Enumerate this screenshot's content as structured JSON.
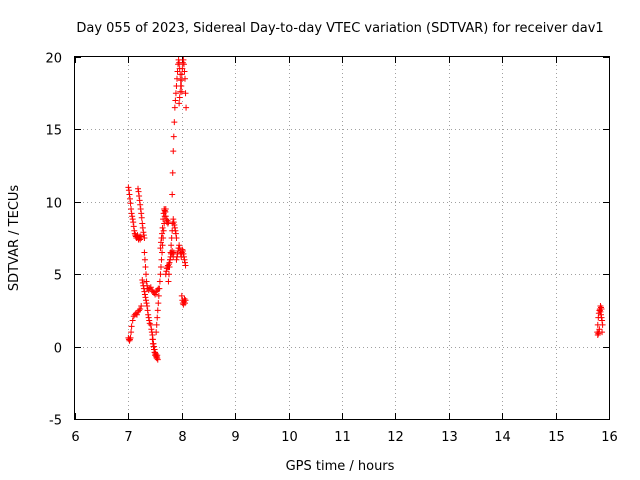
{
  "chart_data": {
    "type": "scatter",
    "title": "Day 055 of 2023, Sidereal Day-to-day VTEC variation (SDTVAR) for receiver dav1",
    "xlabel": "GPS time / hours",
    "ylabel": "SDTVAR / TECUs",
    "xlim": [
      6,
      16
    ],
    "ylim": [
      -5,
      20
    ],
    "xticks": [
      6,
      7,
      8,
      9,
      10,
      11,
      12,
      13,
      14,
      15,
      16
    ],
    "yticks": [
      -5,
      0,
      5,
      10,
      15,
      20
    ],
    "grid": true,
    "marker": "+",
    "color": "#ff0000",
    "series": [
      {
        "name": "SDTVAR",
        "x": [
          7.0,
          7.01,
          7.02,
          7.03,
          7.04,
          7.05,
          7.06,
          7.08,
          7.1,
          7.12,
          7.14,
          7.16,
          7.18,
          7.2,
          7.22,
          7.24,
          7.0,
          7.01,
          7.02,
          7.03,
          7.04,
          7.05,
          7.06,
          7.07,
          7.08,
          7.09,
          7.1,
          7.11,
          7.12,
          7.13,
          7.14,
          7.15,
          7.16,
          7.17,
          7.18,
          7.19,
          7.2,
          7.21,
          7.22,
          7.23,
          7.24,
          7.18,
          7.19,
          7.2,
          7.21,
          7.22,
          7.23,
          7.24,
          7.25,
          7.26,
          7.27,
          7.28,
          7.29,
          7.3,
          7.26,
          7.27,
          7.28,
          7.29,
          7.3,
          7.31,
          7.32,
          7.33,
          7.34,
          7.35,
          7.36,
          7.37,
          7.38,
          7.39,
          7.4,
          7.3,
          7.31,
          7.32,
          7.33,
          7.34,
          7.35,
          7.36,
          7.38,
          7.4,
          7.42,
          7.44,
          7.46,
          7.48,
          7.5,
          7.52,
          7.54,
          7.56,
          7.42,
          7.43,
          7.44,
          7.45,
          7.46,
          7.47,
          7.48,
          7.49,
          7.5,
          7.51,
          7.52,
          7.53,
          7.54,
          7.55,
          7.45,
          7.46,
          7.47,
          7.48,
          7.49,
          7.5,
          7.51,
          7.52,
          7.53,
          7.54,
          7.52,
          7.53,
          7.54,
          7.55,
          7.56,
          7.57,
          7.58,
          7.59,
          7.6,
          7.61,
          7.62,
          7.63,
          7.64,
          7.65,
          7.66,
          7.67,
          7.68,
          7.69,
          7.7,
          7.6,
          7.61,
          7.62,
          7.63,
          7.64,
          7.65,
          7.66,
          7.67,
          7.68,
          7.69,
          7.7,
          7.71,
          7.72,
          7.73,
          7.74,
          7.75,
          7.7,
          7.71,
          7.72,
          7.73,
          7.74,
          7.75,
          7.76,
          7.77,
          7.78,
          7.79,
          7.8,
          7.81,
          7.82,
          7.83,
          7.84,
          7.85,
          7.75,
          7.76,
          7.77,
          7.78,
          7.79,
          7.8,
          7.81,
          7.82,
          7.83,
          7.84,
          7.85,
          7.86,
          7.87,
          7.88,
          7.89,
          7.9,
          7.82,
          7.83,
          7.84,
          7.85,
          7.86,
          7.87,
          7.88,
          7.89,
          7.9,
          7.91,
          7.92,
          7.93,
          7.94,
          7.95,
          7.96,
          7.97,
          7.98,
          7.99,
          8.0,
          7.9,
          7.91,
          7.92,
          7.93,
          7.94,
          7.95,
          7.96,
          7.97,
          7.98,
          7.99,
          8.0,
          8.01,
          8.02,
          8.03,
          8.04,
          8.05,
          8.06,
          8.07,
          7.95,
          7.96,
          7.97,
          7.98,
          7.99,
          8.0,
          8.01,
          8.02,
          8.03,
          8.04,
          8.05,
          8.06,
          8.07,
          8.08,
          8.0,
          8.01,
          8.02,
          8.03,
          8.04,
          8.05,
          8.06,
          8.07,
          15.78,
          15.79,
          15.8,
          15.81,
          15.82,
          15.83,
          15.84,
          15.85,
          15.86,
          15.87,
          15.88,
          15.79,
          15.8,
          15.81,
          15.82,
          15.83,
          15.84,
          15.85,
          15.86,
          15.87
        ],
        "y": [
          0.6,
          0.5,
          0.4,
          0.5,
          0.6,
          1.0,
          1.4,
          1.8,
          2.1,
          2.2,
          2.3,
          2.2,
          2.4,
          2.5,
          2.6,
          2.8,
          11.0,
          10.8,
          10.5,
          10.2,
          9.9,
          9.5,
          9.2,
          9.0,
          8.8,
          8.6,
          8.3,
          8.0,
          7.8,
          7.7,
          7.6,
          7.5,
          7.6,
          7.7,
          7.5,
          7.4,
          7.6,
          7.5,
          7.4,
          7.6,
          7.5,
          10.9,
          10.7,
          10.4,
          10.1,
          9.8,
          9.5,
          9.2,
          8.9,
          8.5,
          8.2,
          7.9,
          7.7,
          7.5,
          4.6,
          4.4,
          4.2,
          4.0,
          3.8,
          3.6,
          3.4,
          3.2,
          3.0,
          2.8,
          2.5,
          2.2,
          2.0,
          1.8,
          1.6,
          6.5,
          6.0,
          5.5,
          5.0,
          4.5,
          4.2,
          4.0,
          3.9,
          4.0,
          4.1,
          3.9,
          3.8,
          3.7,
          3.6,
          3.8,
          3.9,
          4.0,
          1.5,
          1.2,
          1.0,
          0.8,
          0.5,
          0.2,
          0.0,
          -0.2,
          -0.4,
          -0.5,
          -0.6,
          -0.7,
          -0.8,
          -0.9,
          0.5,
          0.2,
          0.0,
          -0.2,
          -0.4,
          -0.6,
          -0.5,
          -0.7,
          -0.8,
          -0.6,
          1.0,
          1.5,
          2.0,
          2.5,
          3.0,
          3.5,
          4.0,
          4.5,
          5.0,
          5.5,
          6.0,
          6.5,
          7.0,
          7.5,
          8.0,
          8.5,
          9.0,
          9.3,
          9.5,
          6.8,
          7.2,
          7.5,
          7.8,
          8.2,
          8.8,
          9.2,
          9.5,
          9.4,
          9.3,
          9.0,
          8.8,
          8.6,
          8.7,
          8.5,
          8.6,
          5.0,
          5.2,
          5.4,
          5.5,
          5.6,
          5.5,
          5.7,
          5.8,
          6.0,
          6.2,
          6.4,
          6.5,
          6.6,
          6.4,
          6.2,
          6.5,
          4.5,
          5.0,
          5.5,
          6.0,
          6.5,
          7.0,
          7.5,
          8.0,
          8.5,
          8.8,
          8.6,
          8.4,
          8.2,
          8.0,
          7.8,
          7.5,
          10.5,
          12.0,
          13.5,
          14.5,
          15.5,
          16.5,
          17.0,
          17.5,
          18.0,
          18.5,
          19.0,
          19.5,
          19.8,
          19.6,
          19.2,
          18.8,
          18.4,
          18.0,
          17.6,
          6.0,
          6.2,
          6.4,
          6.6,
          6.8,
          7.0,
          6.8,
          6.6,
          6.4,
          6.2,
          6.5,
          6.7,
          6.6,
          6.4,
          6.2,
          6.0,
          5.8,
          5.6,
          16.8,
          17.2,
          17.6,
          18.0,
          18.4,
          18.8,
          19.2,
          19.6,
          19.8,
          19.5,
          19.0,
          18.5,
          17.5,
          16.5,
          3.5,
          3.2,
          3.0,
          2.9,
          3.1,
          3.3,
          3.0,
          3.2,
          1.0,
          1.5,
          2.0,
          2.3,
          2.5,
          2.6,
          2.4,
          2.2,
          2.0,
          1.8,
          1.5,
          0.8,
          0.9,
          1.0,
          1.2,
          2.5,
          2.8,
          2.7,
          2.6,
          1.0
        ]
      }
    ]
  }
}
